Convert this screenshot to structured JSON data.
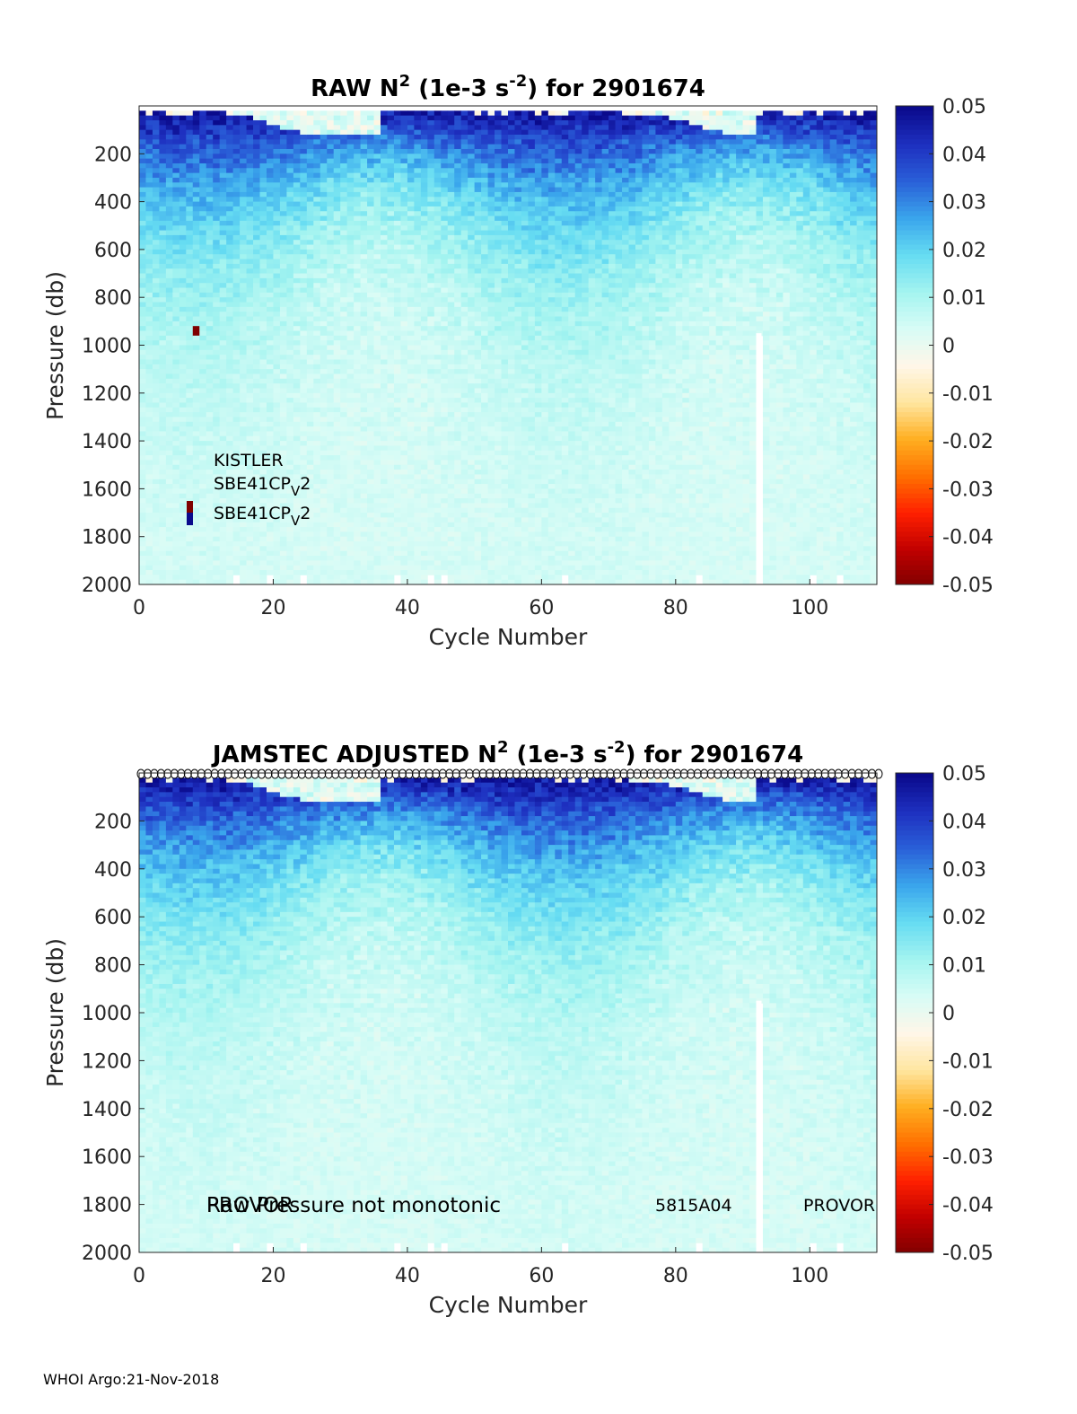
{
  "footer": "WHOI Argo:21-Nov-2018",
  "colormap": [
    "#7f0000",
    "#c00000",
    "#ff2000",
    "#ff7000",
    "#ffae20",
    "#ffe6a0",
    "#fff6e8",
    "#d8fcf6",
    "#a4f4f0",
    "#66dcf2",
    "#3aa6ec",
    "#2a60d8",
    "#1e30c0",
    "#0a0a8c"
  ],
  "chart_data": [
    {
      "type": "heatmap",
      "title_parts": [
        "RAW N",
        "2",
        " (1e-3 s",
        "-2",
        ") for 2901674"
      ],
      "xlabel": "Cycle Number",
      "ylabel": "Pressure (db)",
      "xlim": [
        0,
        110
      ],
      "ylim": [
        2000,
        0
      ],
      "xticks": [
        "0",
        "20",
        "40",
        "60",
        "80",
        "100"
      ],
      "yticks": [
        "200",
        "400",
        "600",
        "800",
        "1000",
        "1200",
        "1400",
        "1600",
        "1800",
        "2000"
      ],
      "colorbar": {
        "range": [
          -0.05,
          0.05
        ],
        "ticks": [
          "0.05",
          "0.04",
          "0.03",
          "0.02",
          "0.01",
          "0",
          "-0.01",
          "-0.02",
          "-0.03",
          "-0.04",
          "-0.05"
        ]
      },
      "annotations": {
        "sensor1": "KISTLER",
        "sensor2_base": "SBE41CP",
        "sensor2_sub": "V",
        "sensor2_end": "2",
        "sensor3_base": "SBE41CP",
        "sensor3_sub": "V",
        "sensor3_end": "2"
      },
      "description_values": {
        "surface_positive_n2": 0.05,
        "deep_n2": 0.005,
        "missing_cycle": 92
      }
    },
    {
      "type": "heatmap",
      "title_parts": [
        "JAMSTEC  ADJUSTED N",
        "2",
        " (1e-3 s",
        "-2",
        ") for 2901674"
      ],
      "xlabel": "Cycle Number",
      "ylabel": "Pressure (db)",
      "xlim": [
        0,
        110
      ],
      "ylim": [
        2000,
        0
      ],
      "xticks": [
        "0",
        "20",
        "40",
        "60",
        "80",
        "100"
      ],
      "yticks": [
        "200",
        "400",
        "600",
        "800",
        "1000",
        "1200",
        "1400",
        "1600",
        "1800",
        "2000"
      ],
      "colorbar": {
        "range": [
          -0.05,
          0.05
        ],
        "ticks": [
          "0.05",
          "0.04",
          "0.03",
          "0.02",
          "0.01",
          "0",
          "-0.01",
          "-0.02",
          "-0.03",
          "-0.04",
          "-0.05"
        ]
      },
      "annotations": {
        "overlap_a": "PROVOR",
        "overlap_b": "Raw Pressure not monotonic",
        "mid": "5815A04",
        "right": "PROVOR"
      },
      "missing_cycle": 92
    }
  ]
}
